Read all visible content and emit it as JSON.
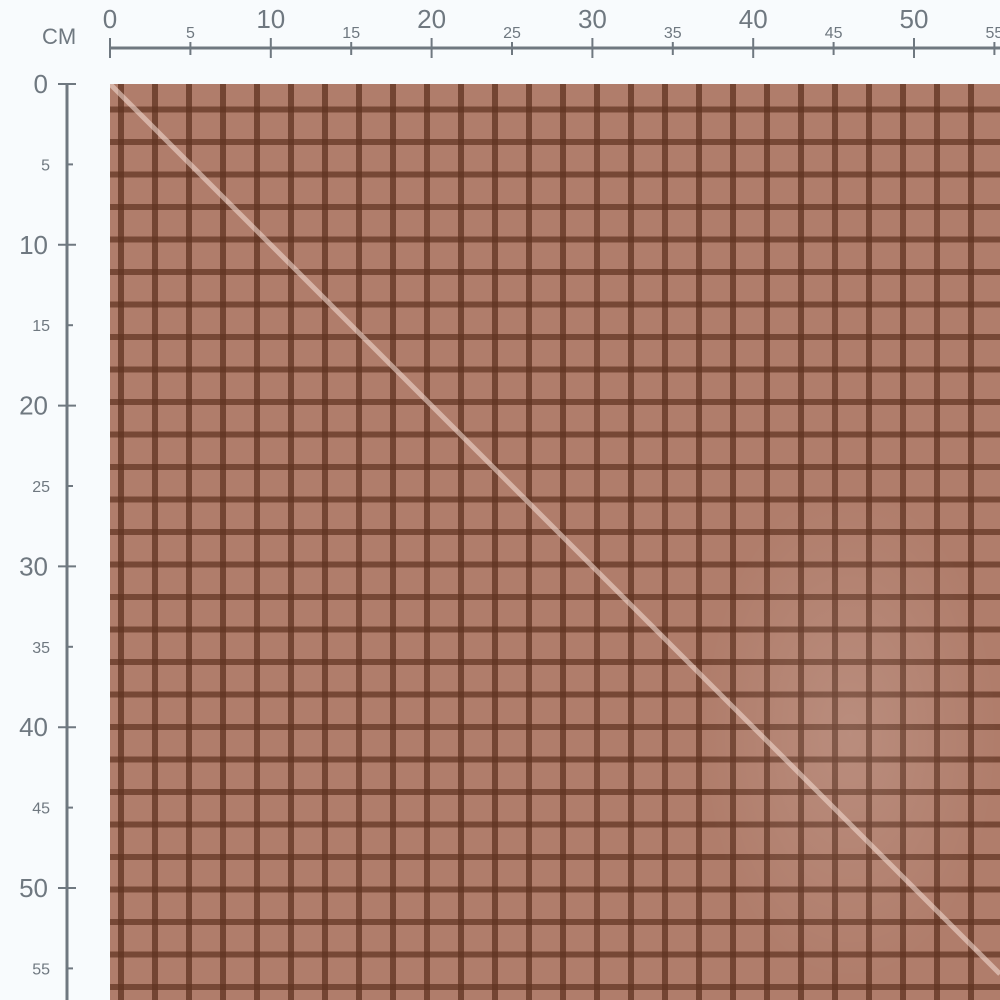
{
  "ruler": {
    "unit": "CM",
    "horizontal_ticks": [
      0,
      5,
      10,
      15,
      20,
      25,
      30,
      35,
      40,
      45,
      50,
      55
    ],
    "vertical_ticks": [
      0,
      5,
      10,
      15,
      20,
      25,
      30,
      35,
      40,
      45,
      50,
      55
    ],
    "color": "#6f7880"
  },
  "swatch": {
    "pattern": "gingham grid",
    "base_color": "#b07d6b",
    "line_color": "#5f3220"
  }
}
